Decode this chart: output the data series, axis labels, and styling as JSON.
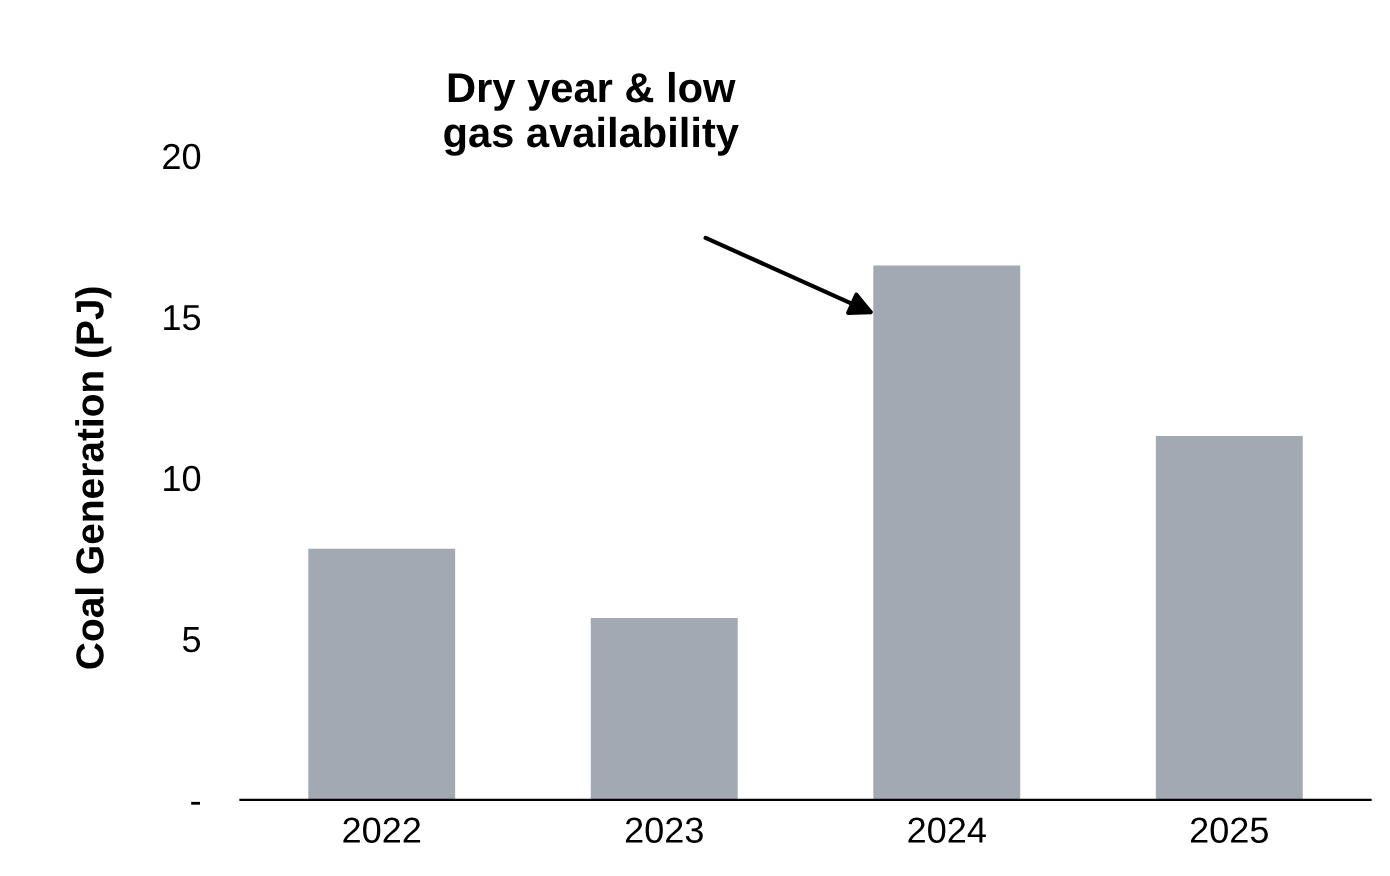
{
  "chart_data": {
    "type": "bar",
    "ylabel": "Coal Generation (PJ)",
    "categories": [
      "2022",
      "2023",
      "2024",
      "2025"
    ],
    "values": [
      7.8,
      5.65,
      16.6,
      11.3
    ],
    "color": "#a3a9b3",
    "ylim": [
      0,
      20
    ],
    "yticks": [
      {
        "value": 0,
        "label": "-"
      },
      5,
      10,
      15,
      20
    ],
    "grid": false,
    "legend": false,
    "annotations": [
      "Dry year & low\ngas availability"
    ]
  }
}
